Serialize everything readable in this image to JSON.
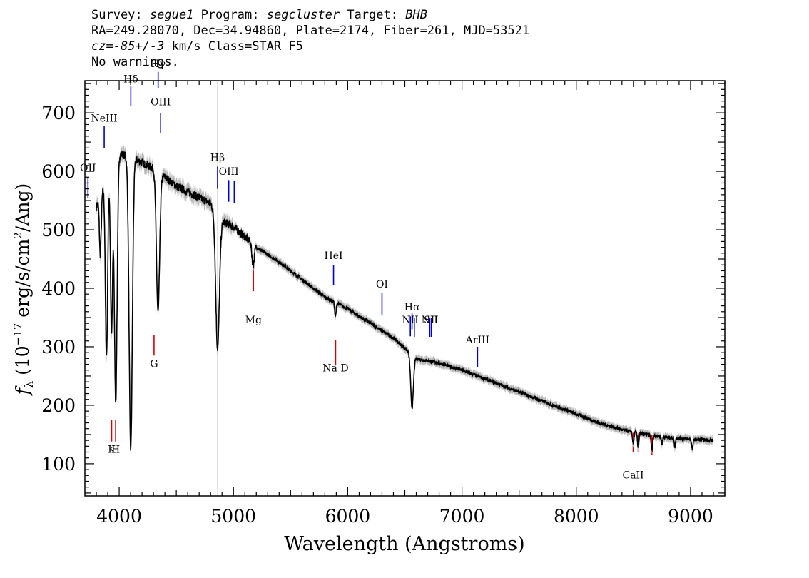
{
  "header": {
    "survey_label": "Survey:",
    "survey": "segue1",
    "program_label": "Program:",
    "program": "segcluster",
    "target_label": "Target:",
    "target": "BHB",
    "line2": "RA=249.28070, Dec=34.94860, Plate=2174, Fiber=261, MJD=53521",
    "cz_label": "cz=",
    "cz_value": "-85+/-3",
    "cz_rest": " km/s Class=STAR F5",
    "line4": "No warnings."
  },
  "chart_data": {
    "type": "line",
    "xlabel": "Wavelength (Angstroms)",
    "ylabel": "f_λ (10^-17 erg/s/cm^2/Ang)",
    "xlim": [
      3700,
      9300
    ],
    "ylim": [
      45,
      755
    ],
    "xticks": [
      4000,
      5000,
      6000,
      7000,
      8000,
      9000
    ],
    "yticks": [
      100,
      200,
      300,
      400,
      500,
      600,
      700
    ],
    "vertical_marker_x": 4861,
    "continuum": {
      "x": [
        3800,
        3900,
        4000,
        4100,
        4200,
        4300,
        4400,
        4500,
        4600,
        4700,
        4800,
        4900,
        5000,
        5200,
        5400,
        5600,
        5800,
        6000,
        6200,
        6400,
        6600,
        6800,
        7000,
        7200,
        7400,
        7600,
        7800,
        8000,
        8200,
        8400,
        8600,
        8800,
        9000,
        9200
      ],
      "y": [
        540,
        590,
        630,
        625,
        615,
        605,
        590,
        575,
        565,
        555,
        545,
        515,
        505,
        470,
        445,
        415,
        385,
        365,
        340,
        315,
        280,
        272,
        260,
        245,
        230,
        215,
        200,
        185,
        170,
        158,
        150,
        145,
        142,
        140
      ]
    },
    "absorption_lines": [
      {
        "x": 3835,
        "depth": 100,
        "width": 8
      },
      {
        "x": 3889,
        "depth": 300,
        "width": 10
      },
      {
        "x": 3933,
        "depth": 280,
        "width": 9
      },
      {
        "x": 3970,
        "depth": 410,
        "width": 12
      },
      {
        "x": 4101,
        "depth": 500,
        "width": 14
      },
      {
        "x": 4340,
        "depth": 240,
        "width": 14
      },
      {
        "x": 4861,
        "depth": 230,
        "width": 16
      },
      {
        "x": 5172,
        "depth": 35,
        "width": 10
      },
      {
        "x": 5892,
        "depth": 25,
        "width": 6
      },
      {
        "x": 6563,
        "depth": 90,
        "width": 12
      },
      {
        "x": 8498,
        "depth": 20,
        "width": 6
      },
      {
        "x": 8542,
        "depth": 25,
        "width": 6
      },
      {
        "x": 8662,
        "depth": 25,
        "width": 6
      },
      {
        "x": 8750,
        "depth": 12,
        "width": 5
      },
      {
        "x": 8862,
        "depth": 15,
        "width": 5
      },
      {
        "x": 9015,
        "depth": 18,
        "width": 6
      }
    ],
    "emission_labels": [
      {
        "label": "OII",
        "x": 3727,
        "y1": 555,
        "y2": 590,
        "label_y": 600
      },
      {
        "label": "NeIII",
        "x": 3869,
        "y1": 640,
        "y2": 678,
        "label_y": 685
      },
      {
        "label": "Hδ",
        "x": 4102,
        "y1": 712,
        "y2": 745,
        "label_y": 752
      },
      {
        "label": "Hγ",
        "x": 4341,
        "y1": 742,
        "y2": 770,
        "label_y": 778
      },
      {
        "label": "OIII",
        "x": 4363,
        "y1": 665,
        "y2": 700,
        "label_y": 713
      },
      {
        "label": "Hβ",
        "x": 4861,
        "y1": 570,
        "y2": 608,
        "label_y": 618
      },
      {
        "label": "OIII",
        "x": 4959,
        "y1": 548,
        "y2": 585,
        "label_y": 594
      },
      {
        "label": "",
        "x": 5007,
        "y1": 546,
        "y2": 583,
        "label_y": 594
      },
      {
        "label": "HeI",
        "x": 5876,
        "y1": 405,
        "y2": 440,
        "label_y": 450
      },
      {
        "label": "OI",
        "x": 6300,
        "y1": 355,
        "y2": 392,
        "label_y": 401
      },
      {
        "label": "NII",
        "x": 6548,
        "y1": 318,
        "y2": 352,
        "label_y": 340
      },
      {
        "label": "Hα",
        "x": 6563,
        "y1": 330,
        "y2": 357,
        "label_y": 362
      },
      {
        "label": "",
        "x": 6583,
        "y1": 317,
        "y2": 350,
        "label_y": 340
      },
      {
        "label": "NII",
        "x": 6717,
        "y1": 317,
        "y2": 350,
        "label_y": 340
      },
      {
        "label": "SII",
        "x": 6731,
        "y1": 317,
        "y2": 350,
        "label_y": 340
      },
      {
        "label": "ArIII",
        "x": 7136,
        "y1": 265,
        "y2": 300,
        "label_y": 306
      }
    ],
    "absorption_labels": [
      {
        "label": "K",
        "x": 3934,
        "y1": 138,
        "y2": 175,
        "label_y": 119
      },
      {
        "label": "H",
        "x": 3969,
        "y1": 138,
        "y2": 175,
        "label_y": 119
      },
      {
        "label": "G",
        "x": 4305,
        "y1": 285,
        "y2": 320,
        "label_y": 265
      },
      {
        "label": "Mg",
        "x": 5175,
        "y1": 395,
        "y2": 440,
        "label_y": 340
      },
      {
        "label": "Na D",
        "x": 5894,
        "y1": 268,
        "y2": 312,
        "label_y": 258
      },
      {
        "label": "CaII",
        "x": 8498,
        "y1": 120,
        "y2": 153,
        "label_y": 75
      },
      {
        "label": "",
        "x": 8542,
        "y1": 120,
        "y2": 153,
        "label_y": 75
      },
      {
        "label": "",
        "x": 8662,
        "y1": 115,
        "y2": 150,
        "label_y": 75
      }
    ],
    "colors": {
      "spectrum": "#000000",
      "error": "#b8b8b8",
      "emission": "#0000dd",
      "absorption": "#dd0000",
      "marker": "#c8c8c8"
    }
  }
}
